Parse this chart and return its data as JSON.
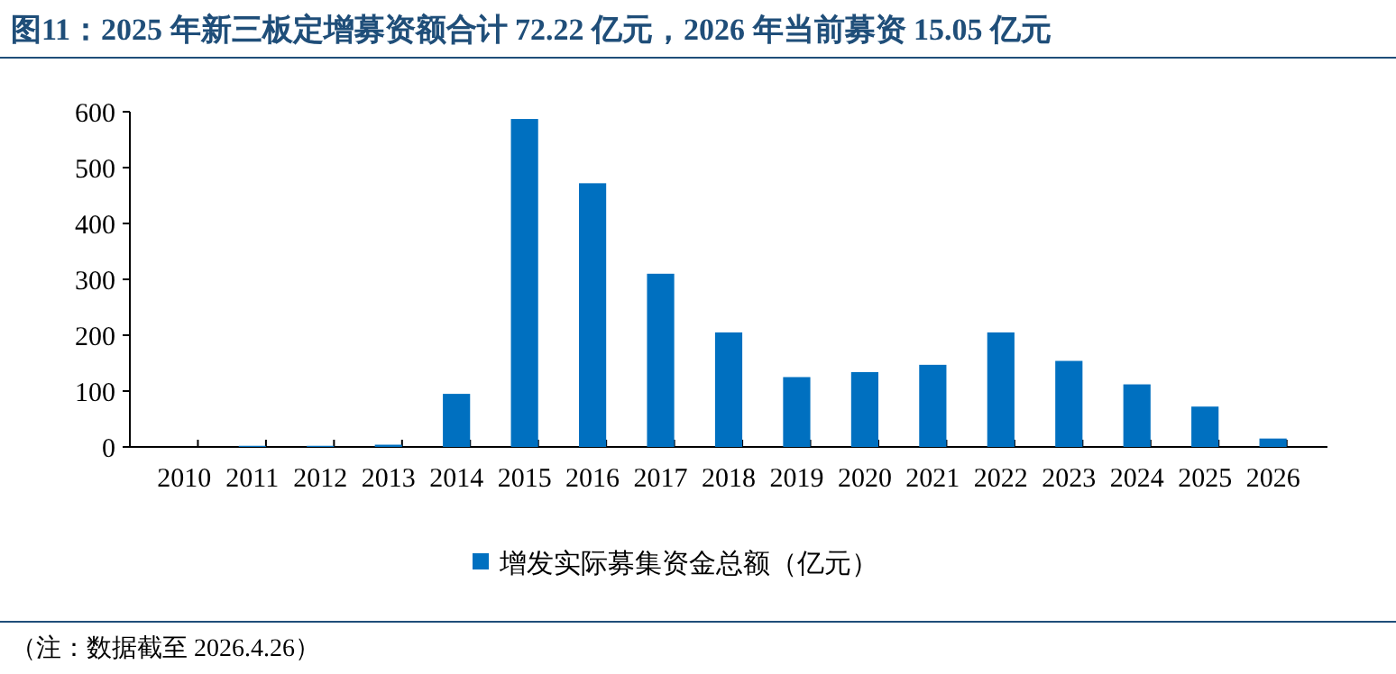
{
  "chart_data": {
    "type": "bar",
    "title": "图11：2025 年新三板定增募资额合计 72.22 亿元，2026 年当前募资 15.05 亿元",
    "categories": [
      "2010",
      "2011",
      "2012",
      "2013",
      "2014",
      "2015",
      "2016",
      "2017",
      "2018",
      "2019",
      "2020",
      "2021",
      "2022",
      "2023",
      "2024",
      "2025",
      "2026"
    ],
    "series": [
      {
        "name": "增发实际募集资金总额（亿元）",
        "color": "#0070c0",
        "values": [
          0,
          2,
          2,
          4,
          95,
          587,
          472,
          310,
          205,
          125,
          134,
          147,
          205,
          154,
          112,
          72.22,
          15.05
        ]
      }
    ],
    "ylim": [
      0,
      600
    ],
    "yticks": [
      0,
      100,
      200,
      300,
      400,
      500,
      600
    ],
    "grid": false,
    "legend": "bottom",
    "annotations": [
      "（注：数据截至 2026.4.26）"
    ]
  }
}
